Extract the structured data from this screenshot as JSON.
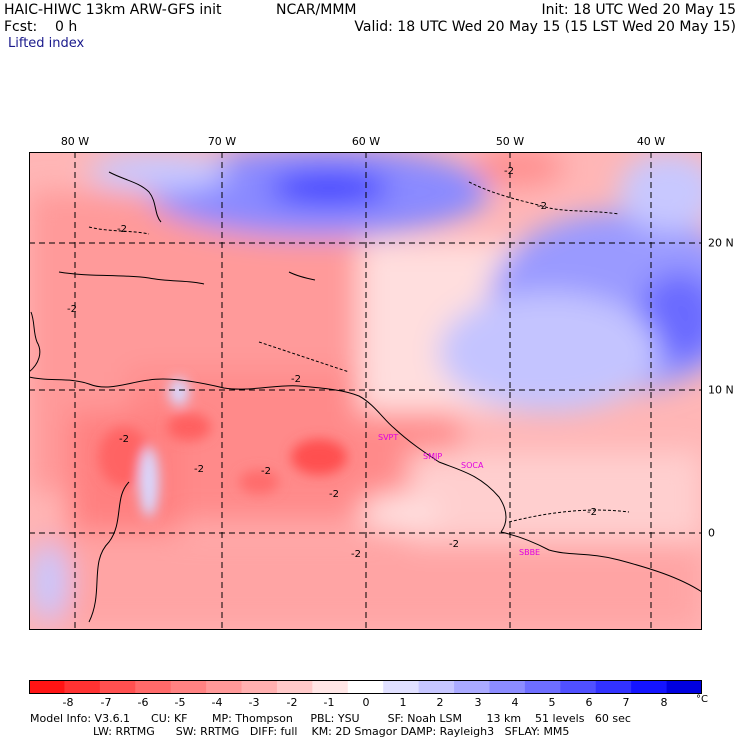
{
  "header": {
    "model_title": "HAIC-HIWC 13km ARW-GFS init",
    "org": "NCAR/MMM",
    "init": "Init: 18 UTC Wed 20 May 15",
    "fcst": "Fcst:    0 h",
    "valid": "Valid: 18 UTC Wed 20 May 15 (15 LST Wed 20 May 15)",
    "field": "Lifted index"
  },
  "map": {
    "lon_labels": [
      "80 W",
      "70 W",
      "60 W",
      "50 W",
      "40 W"
    ],
    "lat_labels": [
      "20 N",
      "10 N",
      "0"
    ],
    "contour_labels": [
      "-2",
      "-2",
      "-2",
      "-2",
      "-2",
      "-2",
      "-2",
      "-2",
      "-2",
      "-2",
      "-2",
      "-2"
    ],
    "stations": [
      "SVPT",
      "SMJP",
      "SOCA",
      "SBBE"
    ]
  },
  "colorbar": {
    "ticks": [
      "-8",
      "-7",
      "-6",
      "-5",
      "-4",
      "-3",
      "-2",
      "-1",
      "0",
      "1",
      "2",
      "3",
      "4",
      "5",
      "6",
      "7",
      "8"
    ],
    "unit": "°C",
    "colors": [
      "#ff1414",
      "#ff3232",
      "#ff5050",
      "#ff6a6a",
      "#ff8282",
      "#ff9999",
      "#ffb0b0",
      "#ffcaca",
      "#ffe6e6",
      "#ffffff",
      "#e0e0ff",
      "#c6c6ff",
      "#aaaaff",
      "#8c8cff",
      "#6e6eff",
      "#5050ff",
      "#3232ff",
      "#1414ff",
      "#0000e0"
    ]
  },
  "footer": {
    "line1": "Model Info: V3.6.1      CU: KF       MP: Thompson     PBL: YSU        SF: Noah LSM       13 km    51 levels   60 sec",
    "line2": "                  LW: RRTMG      SW: RRTMG   DIFF: full    KM: 2D Smagor DAMP: Rayleigh3   SFLAY: MM5"
  }
}
